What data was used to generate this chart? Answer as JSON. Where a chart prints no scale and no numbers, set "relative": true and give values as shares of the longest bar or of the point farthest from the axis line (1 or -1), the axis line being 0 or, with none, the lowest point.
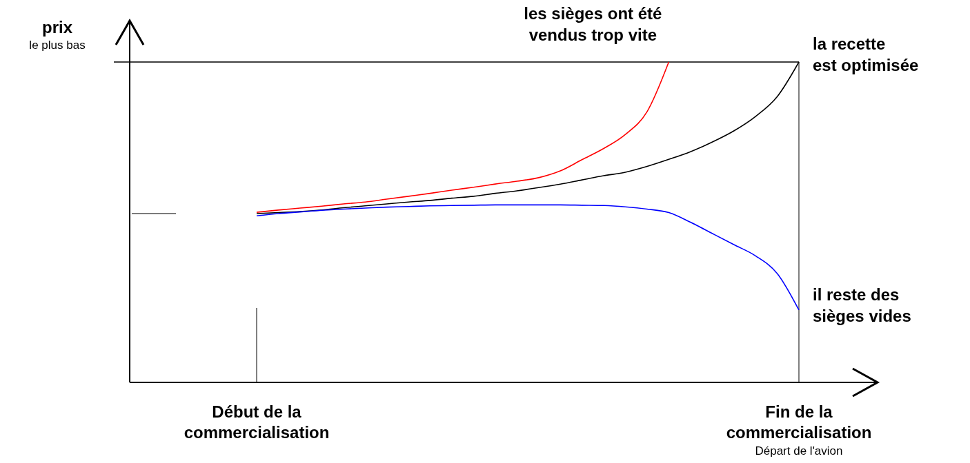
{
  "chart_data": {
    "type": "line",
    "relative": true,
    "categories": [
      "Début de la commercialisation",
      null,
      null,
      null,
      null,
      null,
      null,
      null,
      null,
      null,
      null,
      null,
      null,
      null,
      null,
      null,
      null,
      null,
      null,
      null,
      null,
      null,
      null,
      null,
      null,
      "Fin de la commercialisation"
    ],
    "series": [
      {
        "color": "#ff0000",
        "values": [
          0.531,
          0.538,
          0.544,
          0.55,
          0.557,
          0.563,
          0.572,
          0.581,
          0.59,
          0.6,
          0.609,
          0.619,
          0.628,
          0.639,
          0.66,
          0.695,
          0.73,
          0.774,
          0.845,
          1,
          null,
          null,
          null,
          null,
          null,
          null
        ]
      },
      {
        "color": "#000000",
        "values": [
          0.527,
          0.53,
          0.533,
          0.538,
          0.545,
          0.551,
          0.557,
          0.563,
          0.568,
          0.575,
          0.581,
          0.59,
          0.598,
          0.608,
          0.619,
          0.632,
          0.645,
          0.656,
          0.674,
          0.696,
          0.72,
          0.75,
          0.785,
          0.83,
          0.892,
          1
        ]
      },
      {
        "color": "#0000ff",
        "values": [
          0.52,
          0.527,
          0.532,
          0.537,
          0.541,
          0.544,
          0.547,
          0.549,
          0.551,
          0.552,
          0.553,
          0.554,
          0.554,
          0.554,
          0.554,
          0.553,
          0.552,
          0.548,
          0.541,
          0.53,
          0.5,
          0.465,
          0.43,
          0.395,
          0.34,
          0.226
        ]
      }
    ],
    "ref_lines": [
      {
        "axis": "y",
        "value": 1
      },
      {
        "axis": "x",
        "value": "Fin de la commercialisation"
      }
    ],
    "annotations": [
      "les sièges ont été vendus trop vite",
      "la recette est optimisée",
      "il reste des sièges vides",
      "prix",
      "le plus bas",
      "Départ de l'avion"
    ],
    "legend": false,
    "grid": false,
    "marker": "none",
    "line_style": "solid"
  }
}
